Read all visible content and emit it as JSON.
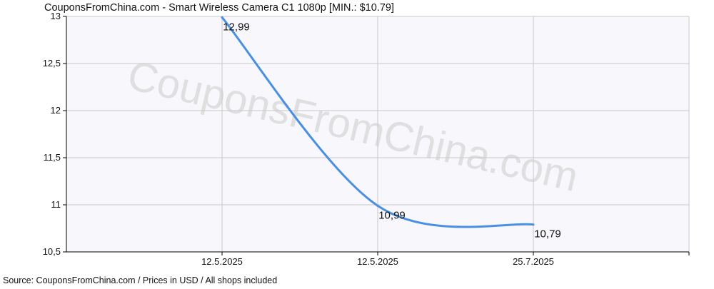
{
  "chart_data": {
    "type": "line",
    "title": "CouponsFromChina.com - Smart Wireless Camera C1 1080p [MIN.: $10.79]",
    "source": "Source:  CouponsFromChina.com / Prices in USD / All shops included",
    "watermark": "CouponsFromChina.com",
    "xlabel": "",
    "ylabel": "",
    "x_tick_labels": [
      "12.5.2025",
      "12.5.2025",
      "25.7.2025"
    ],
    "y_tick_labels": [
      "10,5",
      "11",
      "11,5",
      "12",
      "12,5",
      "13"
    ],
    "ylim": [
      10.5,
      13
    ],
    "grid": true,
    "legend": "none",
    "series": [
      {
        "values": [
          12.99,
          10.99,
          10.79
        ],
        "data_labels": [
          "12,99",
          "10,99",
          "10,79"
        ],
        "color": "#4a90e2"
      }
    ],
    "colors": {
      "plot_background": "#f7f7fc",
      "grid": "#c8c8c8",
      "axis": "#000000",
      "line": "#4a90e2",
      "watermark": "#d6d6d6"
    }
  }
}
